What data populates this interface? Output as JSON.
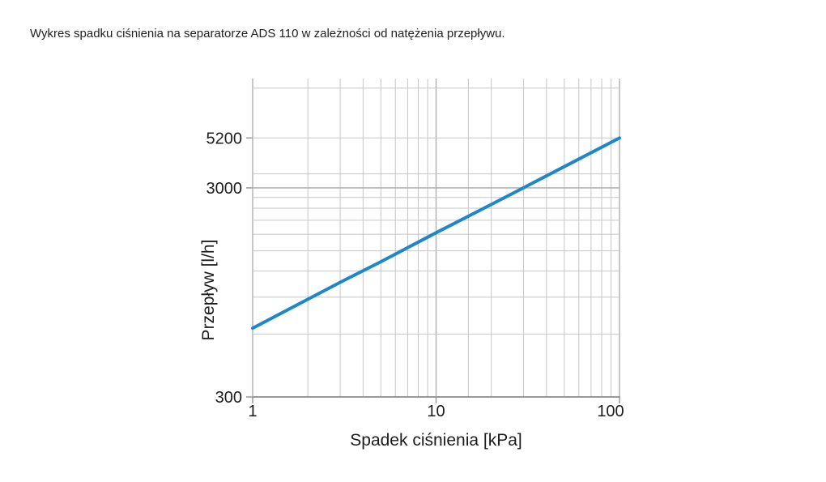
{
  "chart_data": {
    "type": "line",
    "title": "Wykres spadku ciśnienia na separatorze ADS 110 w zależności od natężenia przepływu.",
    "xlabel": "Spadek ciśnienia [kPa]",
    "ylabel": "Przepływ [l/h]",
    "x_scale": "log",
    "y_scale": "log",
    "x_range": [
      1,
      100
    ],
    "y_range": [
      300,
      10000
    ],
    "x_ticks": [
      {
        "label": "1",
        "value": 1
      },
      {
        "label": "10",
        "value": 10
      },
      {
        "label": "100",
        "value": 100
      }
    ],
    "y_ticks": [
      {
        "label": "300",
        "value": 300
      },
      {
        "label": "3000",
        "value": 3000
      },
      {
        "label": "5200",
        "value": 5200
      }
    ],
    "x_gridlines": {
      "minor": [
        2,
        3,
        4,
        5,
        6,
        7,
        8,
        9,
        15,
        20,
        30,
        40,
        50,
        60,
        70,
        80,
        90
      ],
      "major": [
        1,
        10,
        100
      ]
    },
    "y_gridlines": {
      "minor": [
        600,
        900,
        1200,
        1500,
        1800,
        2100,
        2400,
        2700,
        3500,
        5200,
        9000
      ],
      "major": [
        3000
      ]
    },
    "grid": true,
    "legend": false,
    "series": [
      {
        "name": "ADS 110",
        "color": "#1d87c9",
        "points": [
          [
            1,
            640
          ],
          [
            2,
            880
          ],
          [
            3,
            1060
          ],
          [
            5,
            1330
          ],
          [
            10,
            1830
          ],
          [
            20,
            2500
          ],
          [
            50,
            3790
          ],
          [
            100,
            5200
          ]
        ]
      }
    ]
  },
  "colors": {
    "line": "#1d87c9",
    "grid_minor": "#c6c6c6",
    "grid_major": "#a9a9a9",
    "axis": "#999999",
    "text": "#1c1c1c",
    "background": "#ffffff"
  }
}
